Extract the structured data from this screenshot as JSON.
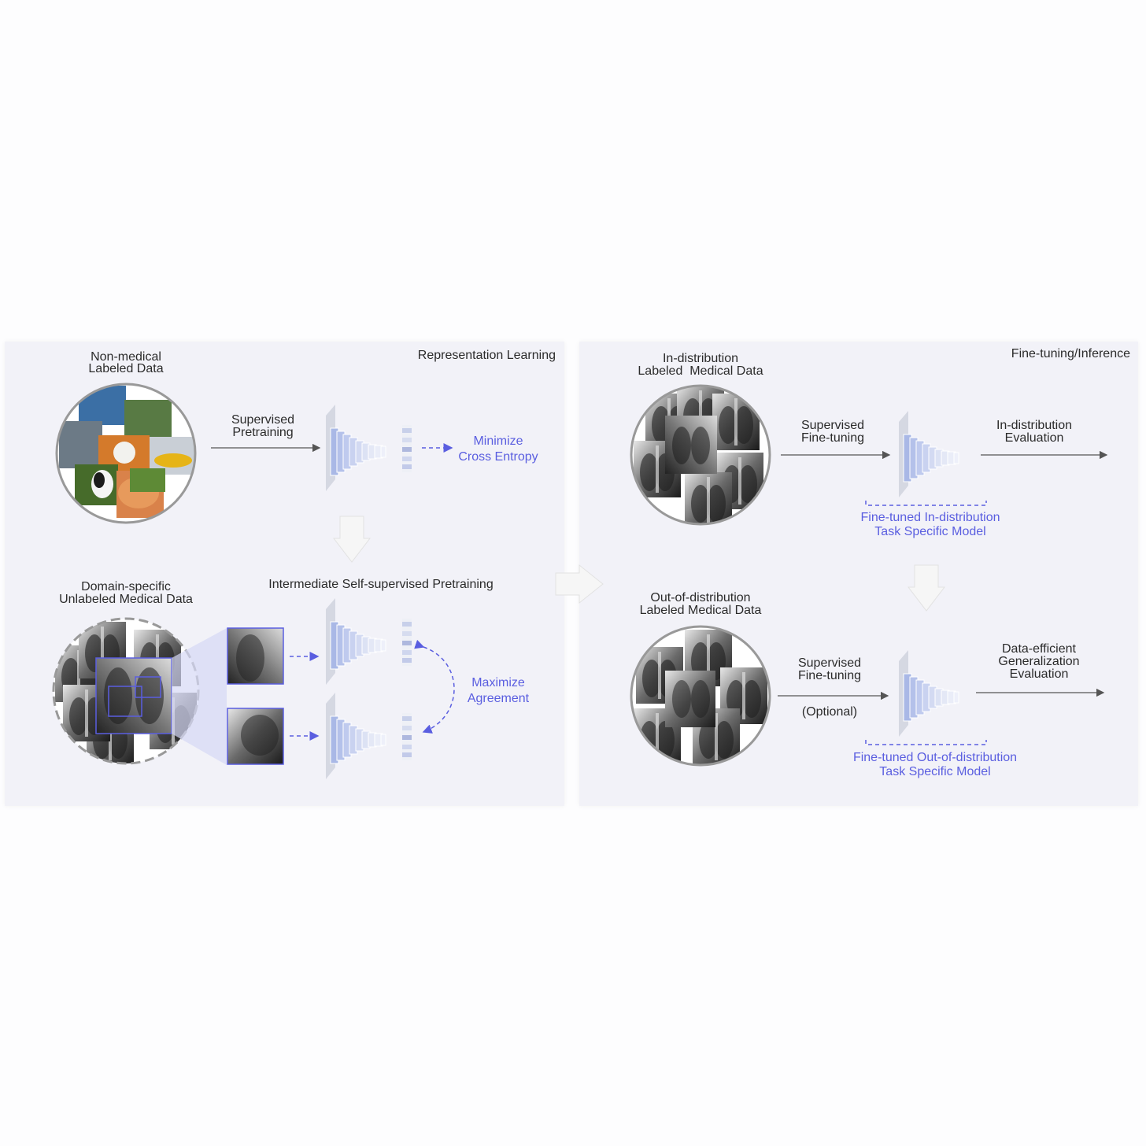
{
  "representation_learning": {
    "title": "Representation Learning",
    "nonmedical_title": [
      "Non-medical",
      "Labeled Data"
    ],
    "supervised_pretraining": [
      "Supervised",
      "Pretraining"
    ],
    "minimize": [
      "Minimize",
      "Cross Entropy"
    ],
    "domain_title": [
      "Domain-specific",
      "Unlabeled Medical Data"
    ],
    "intermediate": "Intermediate Self-supervised Pretraining",
    "maximize": [
      "Maximize",
      "Agreement"
    ]
  },
  "fine_tuning": {
    "title": "Fine-tuning/Inference",
    "indist_title": [
      "In-distribution",
      "Labeled  Medical Data"
    ],
    "supervised_finetuning": [
      "Supervised",
      "Fine-tuning"
    ],
    "indist_eval": [
      "In-distribution",
      "Evaluation"
    ],
    "finetuned_indist": [
      "Fine-tuned In-distribution",
      "Task Specific Model"
    ],
    "ood_title": [
      "Out-of-distribution",
      "Labeled Medical Data"
    ],
    "supervised_finetuning_ood": [
      "Supervised",
      "Fine-tuning"
    ],
    "optional": "(Optional)",
    "data_efficient": [
      "Data-efficient",
      "Generalization",
      "Evaluation"
    ],
    "finetuned_ood": [
      "Fine-tuned Out-of-distribution",
      "Task Specific Model"
    ]
  },
  "colors": {
    "accent": "#5a5ee0",
    "panel": "#f2f2f8",
    "arrow": "#555555",
    "net": "#b8c4e8"
  }
}
